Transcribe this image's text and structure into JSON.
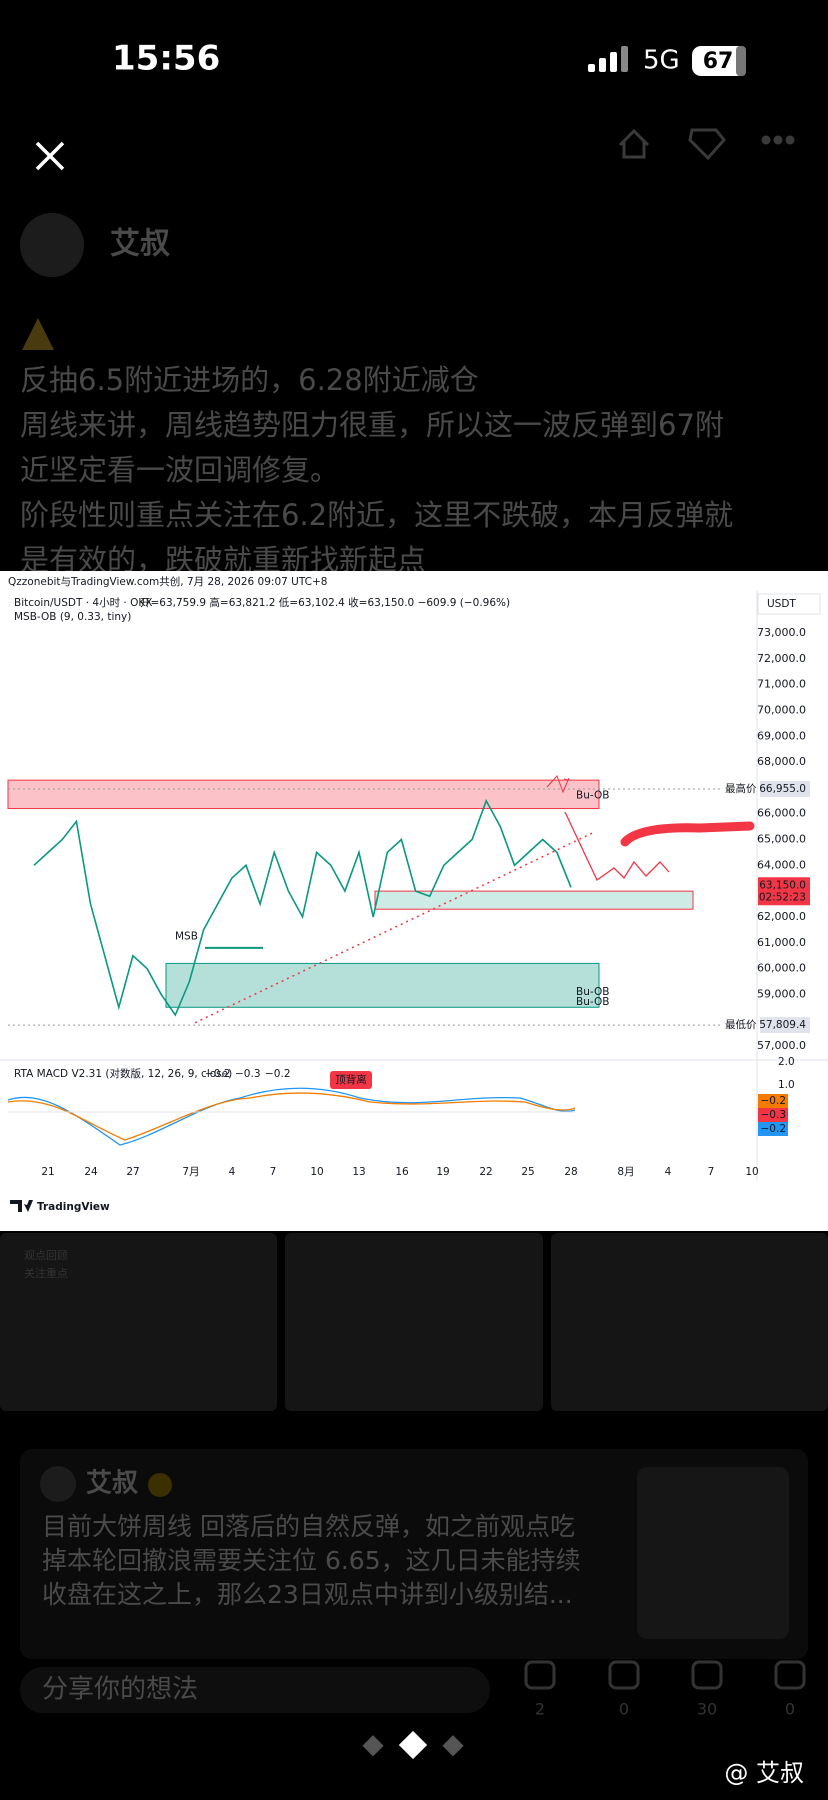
{
  "status": {
    "time": "15:56",
    "network": "5G",
    "battery": "67"
  },
  "post": {
    "author": "艾叔",
    "lines": [
      "反抽6.5附近进场的，6.28附近减仓",
      "周线来讲，周线趋势阻力很重，所以这一波反弹到67附",
      "近坚定看一波回调修复。",
      "阶段性则重点关注在6.2附近，这里不跌破，本月反弹就",
      "是有效的，跌破就重新找新起点"
    ]
  },
  "chart": {
    "header": "Qzzonebit与TradingView.com共创, 7月 28, 2026 09:07 UTC+8",
    "symbol": "Bitcoin/USDT · 4小时 · OKX",
    "ohlc": "开=63,759.9  高=63,821.2  低=63,102.4  收=63,150.0  −609.9 (−0.96%)",
    "indicator": "MSB-OB (9, 0.33, tiny)",
    "currency": "USDT",
    "high_label": "最高价",
    "high_value": "66,955.0",
    "low_label": "最低价",
    "low_value": "57,809.4",
    "last_price": "63,150.0",
    "countdown": "02:52:23",
    "ob_labels": [
      "Bu-OB",
      "Bu-OB",
      "Bu-OB"
    ],
    "msb": "MSB",
    "macd_title": "RTA MACD V2.31 (对数版, 12, 26, 9, close)",
    "macd_values": [
      "−0.2",
      "−0.3",
      "−0.2"
    ],
    "divergence": "顶背离",
    "macd_axis": [
      "2.0",
      "1.0"
    ],
    "brand": "TradingView",
    "x_labels": [
      "21",
      "24",
      "27",
      "7月",
      "4",
      "7",
      "10",
      "13",
      "16",
      "19",
      "22",
      "25",
      "28",
      "8月",
      "4",
      "7",
      "10"
    ],
    "ylim": [
      57000,
      73000
    ],
    "yticks": [
      {
        "value": 73000,
        "label": "73,000.0"
      },
      {
        "value": 72000,
        "label": "72,000.0"
      },
      {
        "value": 71000,
        "label": "71,000.0"
      },
      {
        "value": 70000,
        "label": "70,000.0"
      },
      {
        "value": 69000,
        "label": "69,000.0"
      },
      {
        "value": 68000,
        "label": "68,000.0"
      },
      {
        "value": 66000,
        "label": "66,000.0"
      },
      {
        "value": 65000,
        "label": "65,000.0"
      },
      {
        "value": 64000,
        "label": "64,000.0"
      },
      {
        "value": 62000,
        "label": "62,000.0"
      },
      {
        "value": 61000,
        "label": "61,000.0"
      },
      {
        "value": 60000,
        "label": "60,000.0"
      },
      {
        "value": 59000,
        "label": "59,000.0"
      },
      {
        "value": 57000,
        "label": "57,000.0"
      }
    ],
    "closes": [
      64000,
      64500,
      65000,
      65700,
      62500,
      60500,
      58500,
      60500,
      60000,
      59000,
      58200,
      59500,
      61500,
      62500,
      63500,
      64000,
      62500,
      64500,
      63000,
      62000,
      64500,
      64000,
      63000,
      64500,
      62000,
      64500,
      65000,
      63000,
      62800,
      64000,
      64500,
      65000,
      66500,
      65500,
      64000,
      64500,
      65000,
      64500,
      63150
    ]
  },
  "thumb_captions": [
    "观点回顾",
    "关注重点"
  ],
  "post2": {
    "author": "艾叔",
    "lines": [
      "目前大饼周线 回落后的自然反弹，如之前观点吃",
      "掉本轮回撤浪需要关注位 6.65，这几日未能持续",
      "收盘在这之上，那么23日观点中讲到小级别结..."
    ]
  },
  "comment_placeholder": "分享你的想法",
  "counts": [
    "2",
    "0",
    "30",
    "0"
  ],
  "watermark": "@ 艾叔"
}
